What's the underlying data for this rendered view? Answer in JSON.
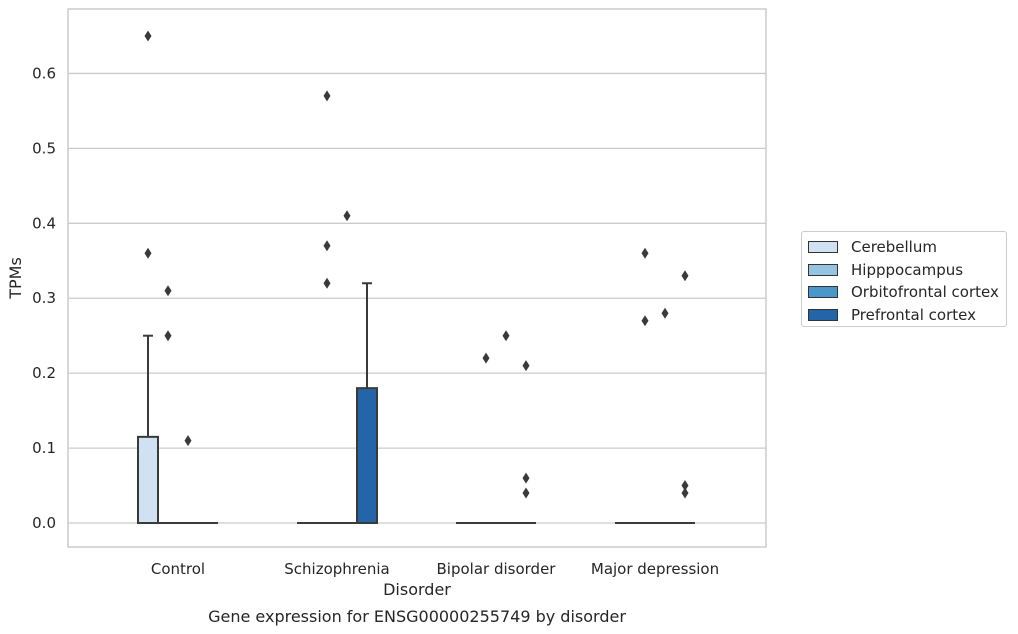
{
  "chart_data": {
    "type": "box",
    "title": "Gene expression for ENSG00000255749 by disorder",
    "xlabel": "Disorder",
    "ylabel": "TPMs",
    "ylim": [
      -0.032,
      0.686
    ],
    "yticks": [
      0.0,
      0.1,
      0.2,
      0.3,
      0.4,
      0.5,
      0.6
    ],
    "ytick_labels": [
      "0.0",
      "0.1",
      "0.2",
      "0.3",
      "0.4",
      "0.5",
      "0.6"
    ],
    "grid": "horizontal",
    "legend_position": "right",
    "categories": [
      "Control",
      "Schizophrenia",
      "Bipolar disorder",
      "Major depression"
    ],
    "series": [
      {
        "name": "Cerebellum",
        "color": "#d0e1f2",
        "boxes": [
          {
            "q1": 0.0,
            "median": 0.0,
            "q3": 0.115,
            "whisker_low": 0.0,
            "whisker_high": 0.25,
            "outliers": [
              0.36,
              0.65
            ]
          },
          {
            "q1": 0.0,
            "median": 0.0,
            "q3": 0.0,
            "whisker_low": 0.0,
            "whisker_high": 0.0,
            "outliers": []
          },
          {
            "q1": 0.0,
            "median": 0.0,
            "q3": 0.0,
            "whisker_low": 0.0,
            "whisker_high": 0.0,
            "outliers": []
          },
          {
            "q1": 0.0,
            "median": 0.0,
            "q3": 0.0,
            "whisker_low": 0.0,
            "whisker_high": 0.0,
            "outliers": []
          }
        ]
      },
      {
        "name": "Hipppocampus",
        "color": "#94c4df",
        "boxes": [
          {
            "q1": 0.0,
            "median": 0.0,
            "q3": 0.0,
            "whisker_low": 0.0,
            "whisker_high": 0.0,
            "outliers": [
              0.25,
              0.31
            ]
          },
          {
            "q1": 0.0,
            "median": 0.0,
            "q3": 0.0,
            "whisker_low": 0.0,
            "whisker_high": 0.0,
            "outliers": [
              0.32,
              0.37,
              0.57
            ]
          },
          {
            "q1": 0.0,
            "median": 0.0,
            "q3": 0.0,
            "whisker_low": 0.0,
            "whisker_high": 0.0,
            "outliers": [
              0.22
            ]
          },
          {
            "q1": 0.0,
            "median": 0.0,
            "q3": 0.0,
            "whisker_low": 0.0,
            "whisker_high": 0.0,
            "outliers": [
              0.27,
              0.36
            ]
          }
        ]
      },
      {
        "name": "Orbitofrontal cortex",
        "color": "#4a98c9",
        "boxes": [
          {
            "q1": 0.0,
            "median": 0.0,
            "q3": 0.0,
            "whisker_low": 0.0,
            "whisker_high": 0.0,
            "outliers": [
              0.11
            ]
          },
          {
            "q1": 0.0,
            "median": 0.0,
            "q3": 0.0,
            "whisker_low": 0.0,
            "whisker_high": 0.0,
            "outliers": [
              0.41
            ]
          },
          {
            "q1": 0.0,
            "median": 0.0,
            "q3": 0.0,
            "whisker_low": 0.0,
            "whisker_high": 0.0,
            "outliers": [
              0.25
            ]
          },
          {
            "q1": 0.0,
            "median": 0.0,
            "q3": 0.0,
            "whisker_low": 0.0,
            "whisker_high": 0.0,
            "outliers": [
              0.28
            ]
          }
        ]
      },
      {
        "name": "Prefrontal cortex",
        "color": "#2365a8",
        "boxes": [
          {
            "q1": 0.0,
            "median": 0.0,
            "q3": 0.0,
            "whisker_low": 0.0,
            "whisker_high": 0.0,
            "outliers": []
          },
          {
            "q1": 0.0,
            "median": 0.0,
            "q3": 0.18,
            "whisker_low": 0.0,
            "whisker_high": 0.32,
            "outliers": []
          },
          {
            "q1": 0.0,
            "median": 0.0,
            "q3": 0.0,
            "whisker_low": 0.0,
            "whisker_high": 0.0,
            "outliers": [
              0.04,
              0.06,
              0.21
            ]
          },
          {
            "q1": 0.0,
            "median": 0.0,
            "q3": 0.0,
            "whisker_low": 0.0,
            "whisker_high": 0.0,
            "outliers": [
              0.04,
              0.05,
              0.33
            ]
          }
        ]
      }
    ]
  }
}
